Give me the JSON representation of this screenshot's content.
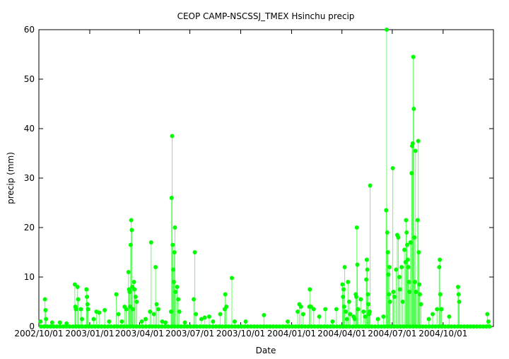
{
  "chart_data": {
    "type": "scatter",
    "title": "CEOP CAMP-NSCSSJ_TMEX Hsinchu  precip",
    "xlabel": "Date",
    "ylabel": "precip (mm)",
    "ylim": [
      0,
      60
    ],
    "yticks": [
      0,
      10,
      20,
      30,
      40,
      50,
      60
    ],
    "xlim": [
      "2002/10/01",
      "2004/12/31"
    ],
    "xticks": [
      "2002/10/01",
      "2003/01/01",
      "2003/04/01",
      "2003/07/01",
      "2003/10/01",
      "2004/01/01",
      "2004/04/01",
      "2004/07/01",
      "2004/10/01"
    ],
    "grid": false,
    "series_color": "#00ff00",
    "series": [
      {
        "name": "precip",
        "points": [
          [
            "2002/10/04",
            1.0
          ],
          [
            "2002/10/12",
            5.5
          ],
          [
            "2002/10/13",
            3.3
          ],
          [
            "2002/10/14",
            1.5
          ],
          [
            "2002/10/25",
            0.8
          ],
          [
            "2002/11/08",
            0.8
          ],
          [
            "2002/11/20",
            0.6
          ],
          [
            "2002/12/05",
            8.5
          ],
          [
            "2002/12/06",
            4.0
          ],
          [
            "2002/12/07",
            3.5
          ],
          [
            "2002/12/10",
            8.0
          ],
          [
            "2002/12/11",
            5.5
          ],
          [
            "2002/12/16",
            3.5
          ],
          [
            "2002/12/18",
            1.5
          ],
          [
            "2002/12/26",
            7.5
          ],
          [
            "2002/12/27",
            6.0
          ],
          [
            "2002/12/28",
            4.5
          ],
          [
            "2002/12/29",
            3.5
          ],
          [
            "2003/01/08",
            1.5
          ],
          [
            "2003/01/13",
            3.0
          ],
          [
            "2003/01/18",
            2.8
          ],
          [
            "2003/01/28",
            3.3
          ],
          [
            "2003/02/05",
            1.0
          ],
          [
            "2003/02/18",
            6.5
          ],
          [
            "2003/02/22",
            2.5
          ],
          [
            "2003/02/28",
            1.0
          ],
          [
            "2003/03/05",
            4.0
          ],
          [
            "2003/03/08",
            3.5
          ],
          [
            "2003/03/12",
            11.0
          ],
          [
            "2003/03/13",
            7.5
          ],
          [
            "2003/03/14",
            7.0
          ],
          [
            "2003/03/15",
            4.0
          ],
          [
            "2003/03/16",
            16.5
          ],
          [
            "2003/03/17",
            21.5
          ],
          [
            "2003/03/18",
            19.5
          ],
          [
            "2003/03/19",
            8.0
          ],
          [
            "2003/03/20",
            3.5
          ],
          [
            "2003/03/22",
            9.0
          ],
          [
            "2003/03/23",
            7.5
          ],
          [
            "2003/03/25",
            6.0
          ],
          [
            "2003/03/27",
            5.0
          ],
          [
            "2003/04/05",
            1.0
          ],
          [
            "2003/04/12",
            1.5
          ],
          [
            "2003/04/20",
            3.0
          ],
          [
            "2003/04/22",
            17.0
          ],
          [
            "2003/04/27",
            2.5
          ],
          [
            "2003/04/30",
            12.0
          ],
          [
            "2003/05/02",
            4.5
          ],
          [
            "2003/05/05",
            3.5
          ],
          [
            "2003/05/12",
            1.0
          ],
          [
            "2003/05/18",
            0.8
          ],
          [
            "2003/05/28",
            3.0
          ],
          [
            "2003/05/29",
            26.0
          ],
          [
            "2003/05/30",
            38.5
          ],
          [
            "2003/05/31",
            16.5
          ],
          [
            "2003/06/01",
            11.5
          ],
          [
            "2003/06/02",
            9.0
          ],
          [
            "2003/06/03",
            15.0
          ],
          [
            "2003/06/04",
            20.0
          ],
          [
            "2003/06/05",
            7.0
          ],
          [
            "2003/06/08",
            8.0
          ],
          [
            "2003/06/10",
            5.5
          ],
          [
            "2003/06/12",
            3.0
          ],
          [
            "2003/06/22",
            0.8
          ],
          [
            "2003/07/08",
            5.5
          ],
          [
            "2003/07/10",
            15.0
          ],
          [
            "2003/07/12",
            2.5
          ],
          [
            "2003/07/22",
            1.5
          ],
          [
            "2003/07/28",
            1.8
          ],
          [
            "2003/08/05",
            2.0
          ],
          [
            "2003/08/12",
            1.0
          ],
          [
            "2003/08/25",
            2.5
          ],
          [
            "2003/09/02",
            3.5
          ],
          [
            "2003/09/03",
            6.5
          ],
          [
            "2003/09/05",
            4.0
          ],
          [
            "2003/09/15",
            9.8
          ],
          [
            "2003/09/20",
            1.0
          ],
          [
            "2003/10/10",
            1.0
          ],
          [
            "2003/11/12",
            2.3
          ],
          [
            "2003/12/25",
            1.0
          ],
          [
            "2004/01/12",
            3.0
          ],
          [
            "2004/01/15",
            4.5
          ],
          [
            "2004/01/18",
            4.0
          ],
          [
            "2004/01/22",
            2.5
          ],
          [
            "2004/02/02",
            4.0
          ],
          [
            "2004/02/03",
            7.5
          ],
          [
            "2004/02/05",
            4.0
          ],
          [
            "2004/02/10",
            3.5
          ],
          [
            "2004/02/20",
            2.0
          ],
          [
            "2004/03/02",
            3.5
          ],
          [
            "2004/03/15",
            1.0
          ],
          [
            "2004/03/22",
            3.5
          ],
          [
            "2004/04/02",
            8.5
          ],
          [
            "2004/04/03",
            6.0
          ],
          [
            "2004/04/04",
            7.5
          ],
          [
            "2004/04/05",
            4.0
          ],
          [
            "2004/04/06",
            12.0
          ],
          [
            "2004/04/08",
            3.0
          ],
          [
            "2004/04/10",
            1.5
          ],
          [
            "2004/04/12",
            9.0
          ],
          [
            "2004/04/14",
            5.0
          ],
          [
            "2004/04/16",
            2.5
          ],
          [
            "2004/04/22",
            2.0
          ],
          [
            "2004/04/24",
            1.5
          ],
          [
            "2004/04/26",
            6.5
          ],
          [
            "2004/04/27",
            6.0
          ],
          [
            "2004/04/28",
            20.0
          ],
          [
            "2004/04/29",
            12.5
          ],
          [
            "2004/04/30",
            3.5
          ],
          [
            "2004/05/05",
            5.5
          ],
          [
            "2004/05/10",
            3.0
          ],
          [
            "2004/05/13",
            2.0
          ],
          [
            "2004/05/15",
            9.5
          ],
          [
            "2004/05/16",
            13.5
          ],
          [
            "2004/05/17",
            11.5
          ],
          [
            "2004/05/18",
            6.5
          ],
          [
            "2004/05/19",
            4.5
          ],
          [
            "2004/05/20",
            2.5
          ],
          [
            "2004/05/21",
            3.0
          ],
          [
            "2004/05/22",
            28.5
          ],
          [
            "2004/06/05",
            1.5
          ],
          [
            "2004/06/15",
            2.0
          ],
          [
            "2004/06/20",
            23.5
          ],
          [
            "2004/06/21",
            60.0
          ],
          [
            "2004/06/22",
            19.0
          ],
          [
            "2004/06/23",
            15.0
          ],
          [
            "2004/06/24",
            10.5
          ],
          [
            "2004/06/25",
            6.5
          ],
          [
            "2004/06/26",
            12.0
          ],
          [
            "2004/06/27",
            5.0
          ],
          [
            "2004/07/02",
            32.0
          ],
          [
            "2004/07/03",
            7.0
          ],
          [
            "2004/07/05",
            6.0
          ],
          [
            "2004/07/08",
            11.5
          ],
          [
            "2004/07/10",
            18.5
          ],
          [
            "2004/07/12",
            18.0
          ],
          [
            "2004/07/14",
            10.0
          ],
          [
            "2004/07/15",
            7.5
          ],
          [
            "2004/07/18",
            12.0
          ],
          [
            "2004/07/20",
            5.0
          ],
          [
            "2004/07/23",
            15.5
          ],
          [
            "2004/07/25",
            13.0
          ],
          [
            "2004/07/26",
            21.5
          ],
          [
            "2004/07/27",
            19.0
          ],
          [
            "2004/07/28",
            16.5
          ],
          [
            "2004/07/29",
            13.5
          ],
          [
            "2004/07/30",
            12.0
          ],
          [
            "2004/07/31",
            9.0
          ],
          [
            "2004/08/01",
            7.0
          ],
          [
            "2004/08/03",
            17.0
          ],
          [
            "2004/08/05",
            31.0
          ],
          [
            "2004/08/06",
            36.5
          ],
          [
            "2004/08/07",
            37.0
          ],
          [
            "2004/08/08",
            54.5
          ],
          [
            "2004/08/09",
            44.0
          ],
          [
            "2004/08/10",
            18.0
          ],
          [
            "2004/08/11",
            9.0
          ],
          [
            "2004/08/12",
            35.5
          ],
          [
            "2004/08/13",
            7.0
          ],
          [
            "2004/08/16",
            21.5
          ],
          [
            "2004/08/17",
            37.5
          ],
          [
            "2004/08/18",
            15.0
          ],
          [
            "2004/08/19",
            8.5
          ],
          [
            "2004/08/20",
            6.5
          ],
          [
            "2004/08/22",
            4.5
          ],
          [
            "2004/09/05",
            1.5
          ],
          [
            "2004/09/12",
            2.5
          ],
          [
            "2004/09/20",
            3.5
          ],
          [
            "2004/09/24",
            12.0
          ],
          [
            "2004/09/25",
            13.5
          ],
          [
            "2004/09/26",
            6.5
          ],
          [
            "2004/09/28",
            3.5
          ],
          [
            "2004/10/12",
            2.0
          ],
          [
            "2004/10/28",
            8.0
          ],
          [
            "2004/10/29",
            6.5
          ],
          [
            "2004/10/30",
            5.0
          ],
          [
            "2004/12/20",
            2.5
          ],
          [
            "2004/12/22",
            1.0
          ]
        ]
      }
    ]
  }
}
